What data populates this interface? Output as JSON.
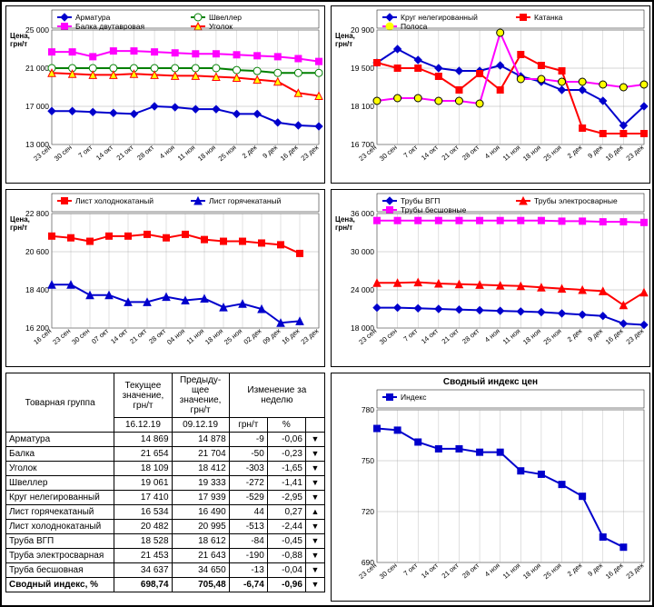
{
  "xcats": [
    "23 сен",
    "30 сен",
    "7 окт",
    "14 окт",
    "21 окт",
    "28 окт",
    "4 ноя",
    "11 ноя",
    "18 ноя",
    "25 ноя",
    "2 дек",
    "9 дек",
    "16 дек",
    "23 дек"
  ],
  "short_xcats": [
    "16 сен",
    "23 сен",
    "30 сен",
    "07 окт",
    "14 окт",
    "21 окт",
    "28 окт",
    "04 ноя",
    "11 ноя",
    "18 ноя",
    "25 ноя",
    "02 дек",
    "09 дек",
    "16 дек",
    "23 дек"
  ],
  "axis_color": "#000",
  "grid_color": "#999",
  "plot_bg": "#ffffff",
  "panel_border": "#000",
  "chart1": {
    "title": "",
    "ylabel": "Цена, грн/т",
    "ylim": [
      13000,
      25000
    ],
    "yticks": [
      13000,
      17000,
      21000,
      25000
    ],
    "series": [
      {
        "name": "Арматура",
        "color": "#0000CC",
        "marker": "diamond",
        "values": [
          16500,
          16500,
          16400,
          16300,
          16200,
          17000,
          16900,
          16700,
          16700,
          16200,
          16200,
          15300,
          15000,
          14900
        ]
      },
      {
        "name": "Швеллер",
        "color": "#008000",
        "marker": "circle_white",
        "values": [
          21000,
          21000,
          21000,
          21000,
          21000,
          21000,
          21000,
          21000,
          21000,
          20800,
          20700,
          20500,
          20500,
          20500
        ]
      },
      {
        "name": "Балка двутавровая",
        "color": "#FF00FF",
        "marker": "square",
        "values": [
          22700,
          22700,
          22200,
          22800,
          22800,
          22700,
          22600,
          22500,
          22500,
          22400,
          22300,
          22200,
          22000,
          21700
        ]
      },
      {
        "name": "Уголок",
        "color": "#FF0000",
        "marker": "triangle_yellow",
        "values": [
          20500,
          20400,
          20300,
          20300,
          20400,
          20300,
          20200,
          20200,
          20100,
          20000,
          19800,
          19600,
          18400,
          18100
        ]
      }
    ]
  },
  "chart2": {
    "ylabel": "Цена, грн/т",
    "ylim": [
      16700,
      20900
    ],
    "yticks": [
      16700,
      18100,
      19500,
      20900
    ],
    "series": [
      {
        "name": "Круг нелегированный",
        "color": "#0000CC",
        "marker": "diamond",
        "values": [
          19700,
          20200,
          19800,
          19500,
          19400,
          19400,
          19600,
          19200,
          19000,
          18700,
          18700,
          18300,
          17400,
          18100
        ]
      },
      {
        "name": "Катанка",
        "color": "#FF0000",
        "marker": "square",
        "values": [
          19700,
          19500,
          19500,
          19200,
          18700,
          19300,
          18700,
          20000,
          19600,
          19400,
          17300,
          17100,
          17100,
          17100
        ]
      },
      {
        "name": "Полоса",
        "color": "#FFFF00",
        "marker": "circle_yellow",
        "line": "#FF00FF",
        "values": [
          18300,
          18400,
          18400,
          18300,
          18300,
          18200,
          20800,
          19100,
          19100,
          19000,
          19000,
          18900,
          18800,
          18900
        ]
      }
    ]
  },
  "chart3": {
    "ylabel": "Цена, грн/т",
    "ylim": [
      16200,
      22800
    ],
    "yticks": [
      16200,
      18400,
      20600,
      22800
    ],
    "series": [
      {
        "name": "Лист холоднокатаный",
        "color": "#FF0000",
        "marker": "square",
        "values": [
          21500,
          21400,
          21200,
          21500,
          21500,
          21600,
          21400,
          21600,
          21300,
          21200,
          21200,
          21100,
          21000,
          20500
        ]
      },
      {
        "name": "Лист горячекатаный",
        "color": "#0000CC",
        "marker": "triangle_blue",
        "values": [
          18700,
          18700,
          18100,
          18100,
          17700,
          17700,
          18000,
          17800,
          17900,
          17400,
          17600,
          17300,
          16500,
          16600
        ]
      }
    ]
  },
  "chart4": {
    "ylabel": "Цена, грн/т",
    "ylim": [
      18000,
      36000
    ],
    "yticks": [
      18000,
      24000,
      30000,
      36000
    ],
    "series": [
      {
        "name": "Трубы ВГП",
        "color": "#0000CC",
        "marker": "diamond",
        "values": [
          21200,
          21200,
          21100,
          21000,
          20900,
          20800,
          20700,
          20600,
          20500,
          20300,
          20100,
          19900,
          18700,
          18500
        ]
      },
      {
        "name": "Трубы электросварные",
        "color": "#FF0000",
        "marker": "triangle_red",
        "values": [
          25100,
          25100,
          25200,
          25000,
          24900,
          24800,
          24700,
          24600,
          24400,
          24200,
          24000,
          23800,
          21600,
          23600
        ]
      },
      {
        "name": "Трубы бесшовные",
        "color": "#FF00FF",
        "marker": "square",
        "values": [
          34900,
          34900,
          34900,
          34900,
          34900,
          34900,
          34900,
          34900,
          34900,
          34800,
          34800,
          34700,
          34700,
          34600
        ]
      }
    ]
  },
  "chart5": {
    "title": "Сводный индекс цен",
    "ylabel": "",
    "ylim": [
      690,
      780
    ],
    "yticks": [
      690,
      720,
      750,
      780
    ],
    "series": [
      {
        "name": "Индекс",
        "color": "#0000CC",
        "marker": "square",
        "values": [
          769,
          768,
          761,
          757,
          757,
          755,
          755,
          744,
          742,
          736,
          729,
          705,
          699,
          null
        ]
      }
    ]
  },
  "table": {
    "headers": {
      "c0": "Товарная группа",
      "c1": "Текущее значение, грн/т",
      "c2": "Предыду­щее значение, грн/т",
      "c3": "Изменение за неделю",
      "c3a": "грн/т",
      "c3b": "%"
    },
    "dates": {
      "cur": "16.12.19",
      "prev": "09.12.19"
    },
    "rows": [
      {
        "name": "Арматура",
        "cur": "14 869",
        "prev": "14 878",
        "d": "-9",
        "p": "-0,06",
        "dir": "▼"
      },
      {
        "name": "Балка",
        "cur": "21 654",
        "prev": "21 704",
        "d": "-50",
        "p": "-0,23",
        "dir": "▼"
      },
      {
        "name": "Уголок",
        "cur": "18 109",
        "prev": "18 412",
        "d": "-303",
        "p": "-1,65",
        "dir": "▼"
      },
      {
        "name": "Швеллер",
        "cur": "19 061",
        "prev": "19 333",
        "d": "-272",
        "p": "-1,41",
        "dir": "▼"
      },
      {
        "name": "Круг нелегированный",
        "cur": "17 410",
        "prev": "17 939",
        "d": "-529",
        "p": "-2,95",
        "dir": "▼"
      },
      {
        "name": "Лист горячекатаный",
        "cur": "16 534",
        "prev": "16 490",
        "d": "44",
        "p": "0,27",
        "dir": "▲"
      },
      {
        "name": "Лист холоднокатаный",
        "cur": "20 482",
        "prev": "20 995",
        "d": "-513",
        "p": "-2,44",
        "dir": "▼"
      },
      {
        "name": "Труба ВГП",
        "cur": "18 528",
        "prev": "18 612",
        "d": "-84",
        "p": "-0,45",
        "dir": "▼"
      },
      {
        "name": "Труба электросварная",
        "cur": "21 453",
        "prev": "21 643",
        "d": "-190",
        "p": "-0,88",
        "dir": "▼"
      },
      {
        "name": "Труба бесшовная",
        "cur": "34 637",
        "prev": "34 650",
        "d": "-13",
        "p": "-0,04",
        "dir": "▼"
      }
    ],
    "summary": {
      "name": "Сводный индекс, %",
      "cur": "698,74",
      "prev": "705,48",
      "d": "-6,74",
      "p": "-0,96",
      "dir": "▼"
    }
  }
}
